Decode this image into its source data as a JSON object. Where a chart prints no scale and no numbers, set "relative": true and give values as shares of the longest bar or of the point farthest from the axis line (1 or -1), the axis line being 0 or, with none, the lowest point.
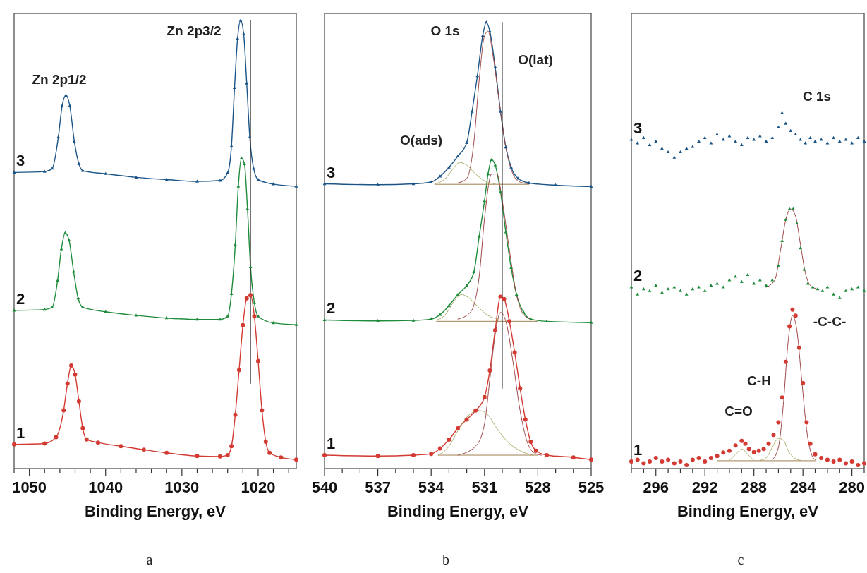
{
  "chart_data": [
    {
      "type": "line",
      "relative": true,
      "xlabel": "Binding Energy, eV",
      "xlim": [
        1052,
        1015
      ],
      "xticks": [
        {
          "value": 1052,
          "label": null
        },
        1050,
        {
          "value": 1048,
          "label": null
        },
        {
          "value": 1046,
          "label": null
        },
        {
          "value": 1044,
          "label": null
        },
        {
          "value": 1042,
          "label": null
        },
        1040,
        {
          "value": 1038,
          "label": null
        },
        {
          "value": 1036,
          "label": null
        },
        {
          "value": 1034,
          "label": null
        },
        {
          "value": 1032,
          "label": null
        },
        1030,
        {
          "value": 1028,
          "label": null
        },
        {
          "value": 1026,
          "label": null
        },
        {
          "value": 1024,
          "label": null
        },
        {
          "value": 1022,
          "label": null
        },
        1020,
        {
          "value": 1018,
          "label": null
        },
        {
          "value": 1016,
          "label": null
        }
      ],
      "series": [
        {
          "name": "1",
          "color": "#d23a32",
          "marker": "circle",
          "x": [
            1052,
            1048,
            1046.5,
            1045.5,
            1045,
            1044.5,
            1044,
            1043.5,
            1043,
            1042.5,
            1041,
            1038,
            1035,
            1032,
            1028,
            1025,
            1024,
            1023.5,
            1023,
            1022.5,
            1022,
            1021.5,
            1021,
            1020.5,
            1020,
            1019.5,
            1019,
            1018.5,
            1017,
            1015
          ],
          "values": [
            0.054,
            0.056,
            0.07,
            0.13,
            0.19,
            0.23,
            0.21,
            0.15,
            0.09,
            0.065,
            0.058,
            0.05,
            0.042,
            0.035,
            0.028,
            0.027,
            0.03,
            0.05,
            0.12,
            0.22,
            0.32,
            0.38,
            0.387,
            0.34,
            0.24,
            0.13,
            0.06,
            0.035,
            0.025,
            0.02
          ]
        },
        {
          "name": "2",
          "color": "#1f8c3c",
          "marker": "triangle",
          "x": [
            1052,
            1048,
            1047,
            1046.3,
            1045.8,
            1045.3,
            1044.8,
            1044.2,
            1043.6,
            1043,
            1040,
            1036,
            1032,
            1028,
            1025,
            1024,
            1023.5,
            1023,
            1022.6,
            1022.2,
            1021.8,
            1021.4,
            1021,
            1020.5,
            1020,
            1018,
            1015
          ],
          "values": [
            0.353,
            0.355,
            0.36,
            0.42,
            0.49,
            0.526,
            0.51,
            0.44,
            0.38,
            0.36,
            0.35,
            0.342,
            0.336,
            0.333,
            0.333,
            0.34,
            0.39,
            0.5,
            0.63,
            0.693,
            0.68,
            0.58,
            0.45,
            0.37,
            0.34,
            0.325,
            0.321
          ]
        },
        {
          "name": "3",
          "color": "#1b5588",
          "marker": "triangle",
          "x": [
            1052,
            1048,
            1047,
            1046.2,
            1045.7,
            1045.2,
            1044.7,
            1044.1,
            1043.5,
            1043,
            1040,
            1036,
            1032,
            1028,
            1025,
            1024,
            1023.5,
            1023.1,
            1022.7,
            1022.3,
            1021.9,
            1021.5,
            1021.1,
            1020.6,
            1020,
            1018,
            1015
          ],
          "values": [
            0.661,
            0.663,
            0.67,
            0.74,
            0.81,
            0.833,
            0.81,
            0.73,
            0.68,
            0.665,
            0.658,
            0.65,
            0.645,
            0.641,
            0.643,
            0.66,
            0.72,
            0.85,
            0.96,
            1.0,
            0.97,
            0.86,
            0.74,
            0.67,
            0.645,
            0.635,
            0.63
          ]
        },
        {
          "type": "line",
          "color": "#222222",
          "x": [
            1021,
            1021
          ],
          "values": [
            0.19,
            1.0
          ]
        }
      ],
      "annotations": [
        "Zn 2p1/2",
        "Zn 2p3/2",
        "a"
      ]
    },
    {
      "type": "line",
      "relative": true,
      "xlabel": "Binding Energy, eV",
      "xlim": [
        540,
        525
      ],
      "xticks": [
        540,
        {
          "value": 539,
          "label": null
        },
        {
          "value": 538,
          "label": null
        },
        537,
        {
          "value": 536,
          "label": null
        },
        {
          "value": 535,
          "label": null
        },
        534,
        {
          "value": 533,
          "label": null
        },
        {
          "value": 532,
          "label": null
        },
        531,
        {
          "value": 530,
          "label": null
        },
        {
          "value": 529,
          "label": null
        },
        528,
        {
          "value": 527,
          "label": null
        },
        {
          "value": 526,
          "label": null
        },
        525
      ],
      "series": [
        {
          "name": "1",
          "color": "#d23a32",
          "marker": "circle",
          "x": [
            540,
            537,
            535,
            534,
            533.5,
            533,
            532.5,
            532,
            531.5,
            531,
            530.7,
            530.4,
            530.1,
            529.9,
            529.6,
            529.3,
            529,
            528.7,
            528.4,
            528.1,
            527.5,
            526,
            525
          ],
          "values": [
            0.03,
            0.028,
            0.03,
            0.033,
            0.045,
            0.065,
            0.09,
            0.11,
            0.13,
            0.16,
            0.22,
            0.31,
            0.385,
            0.38,
            0.33,
            0.26,
            0.18,
            0.11,
            0.06,
            0.04,
            0.03,
            0.025,
            0.02
          ]
        },
        {
          "type": "line",
          "color": "#a04848",
          "x": [
            532.5,
            531.5,
            531,
            530.7,
            530.4,
            530.1,
            529.8,
            529.4,
            529,
            528.6,
            528.2,
            527.8
          ],
          "values": [
            0.03,
            0.05,
            0.1,
            0.2,
            0.3,
            0.35,
            0.33,
            0.24,
            0.13,
            0.06,
            0.035,
            0.03
          ]
        },
        {
          "type": "line",
          "color": "#b0b070",
          "x": [
            533.6,
            533,
            532.5,
            532,
            531.3,
            530.8,
            530.3,
            529.7,
            529,
            528.3
          ],
          "values": [
            0.03,
            0.05,
            0.085,
            0.115,
            0.13,
            0.12,
            0.09,
            0.06,
            0.04,
            0.03
          ]
        },
        {
          "type": "line",
          "color": "#a08050",
          "x": [
            533.6,
            528
          ],
          "values": [
            0.03,
            0.03
          ]
        },
        {
          "name": "2",
          "color": "#1f8c3c",
          "marker": "triangle",
          "x": [
            540,
            537,
            535,
            534,
            533.5,
            533,
            532.5,
            532,
            531.6,
            531.3,
            531,
            530.8,
            530.6,
            530.4,
            530.1,
            529.8,
            529.5,
            529.2,
            528.8,
            528.4,
            527.5,
            525
          ],
          "values": [
            0.333,
            0.331,
            0.332,
            0.335,
            0.345,
            0.365,
            0.39,
            0.41,
            0.44,
            0.52,
            0.6,
            0.66,
            0.692,
            0.68,
            0.62,
            0.53,
            0.45,
            0.39,
            0.35,
            0.335,
            0.33,
            0.327
          ]
        },
        {
          "type": "line",
          "color": "#a04848",
          "x": [
            532.5,
            531.8,
            531.3,
            531,
            530.6,
            530.3,
            530,
            529.6,
            529.2,
            528.8,
            528.4
          ],
          "values": [
            0.335,
            0.35,
            0.43,
            0.56,
            0.66,
            0.66,
            0.6,
            0.49,
            0.39,
            0.345,
            0.335
          ]
        },
        {
          "type": "line",
          "color": "#b0b070",
          "x": [
            533.7,
            533.2,
            532.8,
            532.3,
            531.8,
            531.3,
            530.8,
            530.2
          ],
          "values": [
            0.333,
            0.345,
            0.37,
            0.39,
            0.38,
            0.36,
            0.343,
            0.335
          ]
        },
        {
          "type": "line",
          "color": "#a08050",
          "x": [
            533.7,
            528
          ],
          "values": [
            0.33,
            0.33
          ]
        },
        {
          "name": "3",
          "color": "#1b5588",
          "marker": "triangle",
          "x": [
            540,
            537,
            535,
            534,
            533.5,
            533,
            532.5,
            532,
            531.7,
            531.4,
            531.1,
            530.9,
            530.7,
            530.4,
            530.1,
            529.8,
            529.5,
            529.1,
            528.5,
            527,
            525
          ],
          "values": [
            0.638,
            0.636,
            0.638,
            0.642,
            0.655,
            0.675,
            0.7,
            0.73,
            0.8,
            0.88,
            0.97,
            1.0,
            0.98,
            0.9,
            0.8,
            0.72,
            0.675,
            0.65,
            0.64,
            0.635,
            0.632
          ]
        },
        {
          "type": "line",
          "color": "#a04848",
          "x": [
            532.5,
            532,
            531.6,
            531.3,
            531,
            530.8,
            530.5,
            530.1,
            529.8,
            529.4,
            529,
            528.5
          ],
          "values": [
            0.64,
            0.65,
            0.73,
            0.87,
            0.97,
            0.98,
            0.92,
            0.8,
            0.72,
            0.66,
            0.642,
            0.638
          ]
        },
        {
          "type": "line",
          "color": "#b0b070",
          "x": [
            533.8,
            533.2,
            532.8,
            532.4,
            532,
            531.5,
            531,
            530.4
          ],
          "values": [
            0.638,
            0.65,
            0.67,
            0.686,
            0.68,
            0.66,
            0.645,
            0.638
          ]
        },
        {
          "type": "line",
          "color": "#a08050",
          "x": [
            533.8,
            528.5
          ],
          "values": [
            0.637,
            0.637
          ]
        },
        {
          "type": "line",
          "color": "#222222",
          "x": [
            530,
            530
          ],
          "values": [
            0.18,
            1.0
          ]
        }
      ],
      "annotations": [
        "O 1s",
        "O(lat)",
        "O(ads)",
        "b"
      ]
    },
    {
      "type": "scatter",
      "relative": true,
      "xlabel": "Binding Energy, eV",
      "xlim": [
        298,
        279
      ],
      "xticks": [
        {
          "value": 298,
          "label": null
        },
        {
          "value": 297,
          "label": null
        },
        296,
        {
          "value": 295,
          "label": null
        },
        {
          "value": 294,
          "label": null
        },
        {
          "value": 293,
          "label": null
        },
        292,
        {
          "value": 291,
          "label": null
        },
        {
          "value": 290,
          "label": null
        },
        {
          "value": 289,
          "label": null
        },
        288,
        {
          "value": 287,
          "label": null
        },
        {
          "value": 286,
          "label": null
        },
        {
          "value": 285,
          "label": null
        },
        284,
        {
          "value": 283,
          "label": null
        },
        {
          "value": 282,
          "label": null
        },
        {
          "value": 281,
          "label": null
        },
        280,
        {
          "value": 279,
          "label": null
        }
      ],
      "series": [
        {
          "name": "1",
          "color": "#d23a32",
          "marker": "circle",
          "x": [
            298,
            297.5,
            297,
            296.5,
            296,
            295.5,
            295,
            294.5,
            294,
            293.5,
            293,
            292.5,
            292,
            291.5,
            291,
            290.5,
            290,
            289.5,
            289,
            288.7,
            288.4,
            288,
            287.6,
            287.2,
            286.8,
            286.4,
            286,
            285.7,
            285.4,
            285.1,
            284.85,
            284.6,
            284.3,
            284,
            283.7,
            283.4,
            283,
            282.5,
            282,
            281.5,
            281,
            280.5,
            280,
            279.5,
            279
          ],
          "values": [
            0.02,
            0.025,
            0.015,
            0.02,
            0.03,
            0.02,
            0.025,
            0.015,
            0.02,
            0.01,
            0.025,
            0.03,
            0.02,
            0.03,
            0.035,
            0.045,
            0.05,
            0.065,
            0.078,
            0.07,
            0.055,
            0.046,
            0.05,
            0.055,
            0.07,
            0.095,
            0.13,
            0.2,
            0.3,
            0.4,
            0.447,
            0.43,
            0.34,
            0.24,
            0.13,
            0.07,
            0.04,
            0.03,
            0.025,
            0.02,
            0.025,
            0.015,
            0.02,
            0.01,
            0.015
          ]
        },
        {
          "type": "line",
          "color": "#a04848",
          "x": [
            286.5,
            286,
            285.6,
            285.2,
            284.85,
            284.5,
            284.1,
            283.7,
            283.3,
            283
          ],
          "values": [
            0.025,
            0.06,
            0.18,
            0.36,
            0.43,
            0.39,
            0.25,
            0.11,
            0.04,
            0.025
          ]
        },
        {
          "type": "line",
          "color": "#b0b070",
          "x": [
            287.5,
            287,
            286.5,
            286,
            285.6,
            285.2,
            284.7,
            284.2
          ],
          "values": [
            0.023,
            0.03,
            0.06,
            0.085,
            0.08,
            0.05,
            0.03,
            0.023
          ]
        },
        {
          "type": "line",
          "color": "#b0b070",
          "x": [
            290,
            289.5,
            289,
            288.5,
            288
          ],
          "values": [
            0.023,
            0.04,
            0.055,
            0.04,
            0.023
          ]
        },
        {
          "type": "line",
          "color": "#a08050",
          "x": [
            291,
            283
          ],
          "values": [
            0.022,
            0.022
          ]
        },
        {
          "name": "2",
          "color": "#1f8c3c",
          "marker": "triangle",
          "x": [
            298,
            297.5,
            297,
            296.5,
            296,
            295.5,
            295,
            294.5,
            294,
            293.5,
            293,
            292.5,
            292,
            291.5,
            291,
            290.5,
            290,
            289.5,
            289,
            288.5,
            288,
            287.5,
            287,
            286.5,
            286,
            285.7,
            285.4,
            285.1,
            284.8,
            284.5,
            284.2,
            283.9,
            283.6,
            283.2,
            282.8,
            282.4,
            282,
            281.5,
            281,
            280.5,
            280,
            279.5,
            279
          ],
          "values": [
            0.51,
            0.49,
            0.505,
            0.5,
            0.515,
            0.495,
            0.505,
            0.51,
            0.5,
            0.49,
            0.505,
            0.51,
            0.5,
            0.515,
            0.52,
            0.51,
            0.53,
            0.54,
            0.525,
            0.545,
            0.52,
            0.53,
            0.515,
            0.53,
            0.57,
            0.64,
            0.7,
            0.73,
            0.73,
            0.69,
            0.62,
            0.56,
            0.52,
            0.51,
            0.505,
            0.5,
            0.51,
            0.49,
            0.48,
            0.5,
            0.505,
            0.51,
            0.5
          ]
        },
        {
          "type": "line",
          "color": "#a04848",
          "x": [
            287,
            286.3,
            285.8,
            285.4,
            285,
            284.6,
            284.2,
            283.8,
            283.4,
            283
          ],
          "values": [
            0.51,
            0.53,
            0.62,
            0.7,
            0.73,
            0.71,
            0.63,
            0.55,
            0.515,
            0.507
          ]
        },
        {
          "type": "line",
          "color": "#a08050",
          "x": [
            291,
            283.5
          ],
          "values": [
            0.505,
            0.505
          ]
        },
        {
          "name": "3",
          "color": "#1b5588",
          "marker": "triangle",
          "x": [
            298,
            297.5,
            297,
            296.5,
            296,
            295.5,
            295,
            294.5,
            294,
            293.5,
            293,
            292.5,
            292,
            291.5,
            291,
            290.5,
            290,
            289.5,
            289,
            288.5,
            288,
            287.5,
            287,
            286.5,
            286,
            285.7,
            285.4,
            285,
            284.6,
            284.2,
            283.8,
            283.4,
            283,
            282.5,
            282,
            281.5,
            281,
            280.5,
            280,
            279.5,
            279
          ],
          "values": [
            0.925,
            0.915,
            0.93,
            0.91,
            0.92,
            0.9,
            0.89,
            0.875,
            0.89,
            0.9,
            0.905,
            0.92,
            0.93,
            0.915,
            0.94,
            0.925,
            0.935,
            0.92,
            0.91,
            0.93,
            0.925,
            0.935,
            0.92,
            0.93,
            0.96,
            1.0,
            0.97,
            0.95,
            0.94,
            0.925,
            0.915,
            0.93,
            0.92,
            0.925,
            0.915,
            0.93,
            0.92,
            0.925,
            0.915,
            0.93,
            0.92
          ]
        }
      ],
      "annotations": [
        "C 1s",
        "-C-C-",
        "C-H",
        "C=O",
        "c"
      ]
    }
  ]
}
